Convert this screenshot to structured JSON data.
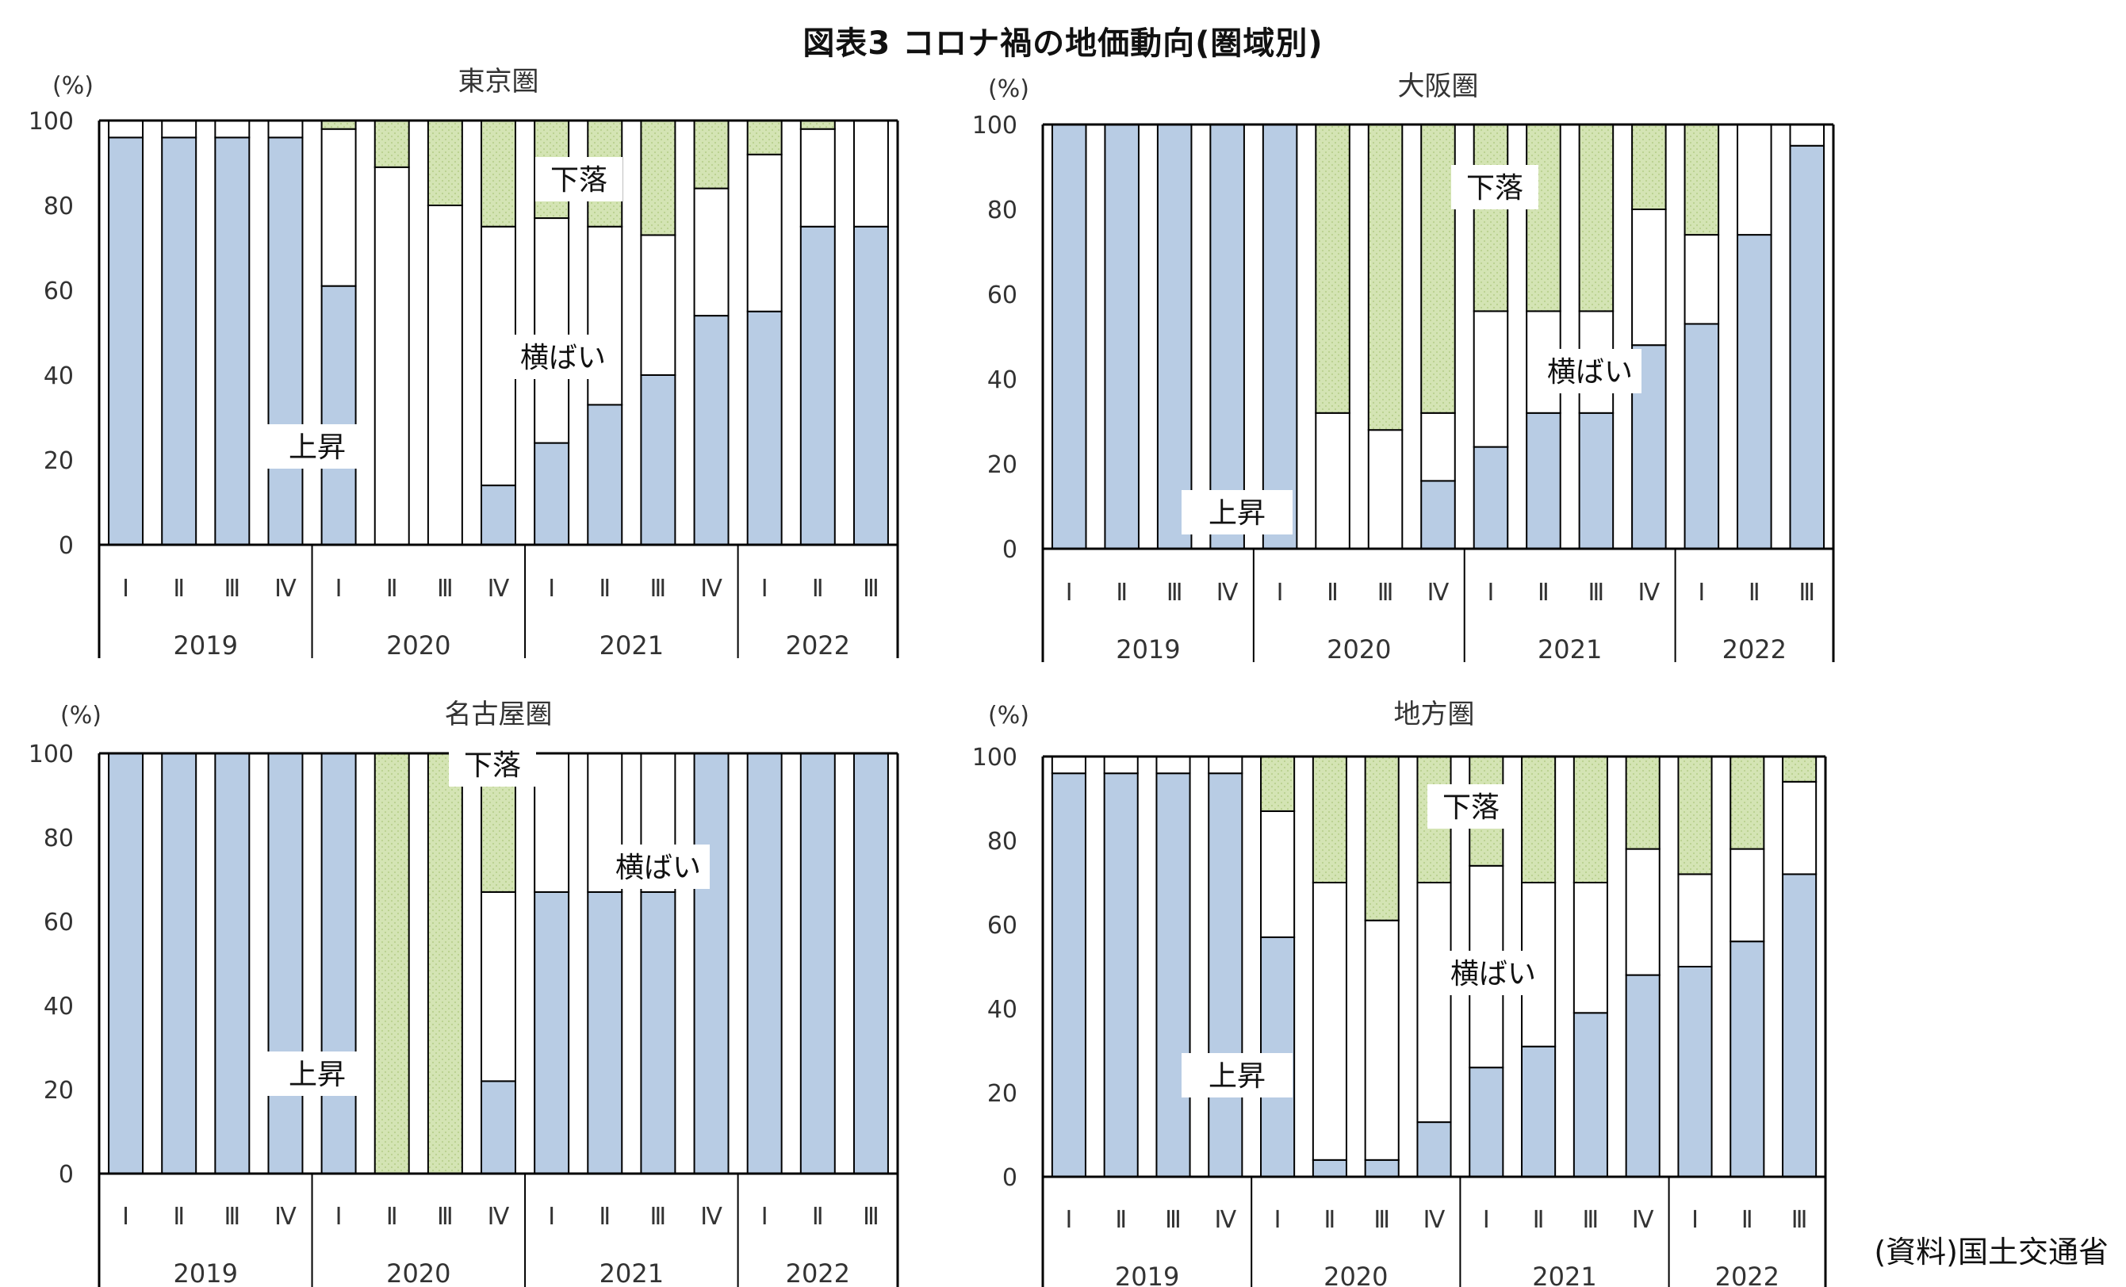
{
  "figure": {
    "title": "図表3 コロナ禍の地価動向(圏域別)",
    "source": "(資料)国土交通省"
  },
  "colors": {
    "rise": "#b8cce4",
    "flat": "#ffffff",
    "fall": "#d4e4b4",
    "fall_dot": "#b9d08e",
    "axis": "#000000"
  },
  "chart_data": [
    {
      "type": "bar",
      "stacked": true,
      "title": "東京圏",
      "ylabel": "(%)",
      "ylim": [
        0,
        100
      ],
      "yticks": [
        0,
        20,
        40,
        60,
        80,
        100
      ],
      "categories": [
        "Ⅰ",
        "Ⅱ",
        "Ⅲ",
        "Ⅳ",
        "Ⅰ",
        "Ⅱ",
        "Ⅲ",
        "Ⅳ",
        "Ⅰ",
        "Ⅱ",
        "Ⅲ",
        "Ⅳ",
        "Ⅰ",
        "Ⅱ",
        "Ⅲ"
      ],
      "years": [
        {
          "label": "2019",
          "count": 4
        },
        {
          "label": "2020",
          "count": 4
        },
        {
          "label": "2021",
          "count": 4
        },
        {
          "label": "2022",
          "count": 3
        }
      ],
      "series": [
        {
          "name": "上昇",
          "values": [
            96,
            96,
            96,
            96,
            61,
            0,
            0,
            14,
            24,
            33,
            40,
            54,
            55,
            75,
            75
          ]
        },
        {
          "name": "横ばい",
          "values": [
            4,
            4,
            4,
            4,
            37,
            89,
            80,
            61,
            53,
            42,
            33,
            30,
            37,
            23,
            25
          ]
        },
        {
          "name": "下落",
          "values": [
            0,
            0,
            0,
            0,
            2,
            11,
            20,
            25,
            23,
            25,
            27,
            16,
            8,
            2,
            0
          ]
        }
      ],
      "annotations": {
        "rise": "上昇",
        "flat": "横ばい",
        "fall": "下落"
      }
    },
    {
      "type": "bar",
      "stacked": true,
      "title": "大阪圏",
      "ylabel": "(%)",
      "ylim": [
        0,
        100
      ],
      "yticks": [
        0,
        20,
        40,
        60,
        80,
        100
      ],
      "categories": [
        "Ⅰ",
        "Ⅱ",
        "Ⅲ",
        "Ⅳ",
        "Ⅰ",
        "Ⅱ",
        "Ⅲ",
        "Ⅳ",
        "Ⅰ",
        "Ⅱ",
        "Ⅲ",
        "Ⅳ",
        "Ⅰ",
        "Ⅱ",
        "Ⅲ"
      ],
      "years": [
        {
          "label": "2019",
          "count": 4
        },
        {
          "label": "2020",
          "count": 4
        },
        {
          "label": "2021",
          "count": 4
        },
        {
          "label": "2022",
          "count": 3
        }
      ],
      "series": [
        {
          "name": "上昇",
          "values": [
            100,
            100,
            100,
            100,
            100,
            0,
            0,
            16,
            24,
            32,
            32,
            48,
            53,
            74,
            95
          ]
        },
        {
          "name": "横ばい",
          "values": [
            0,
            0,
            0,
            0,
            0,
            32,
            28,
            16,
            32,
            24,
            24,
            32,
            21,
            26,
            5
          ]
        },
        {
          "name": "下落",
          "values": [
            0,
            0,
            0,
            0,
            0,
            68,
            72,
            68,
            44,
            44,
            44,
            20,
            26,
            0,
            0
          ]
        }
      ],
      "annotations": {
        "rise": "上昇",
        "flat": "横ばい",
        "fall": "下落"
      }
    },
    {
      "type": "bar",
      "stacked": true,
      "title": "名古屋圏",
      "ylabel": "(%)",
      "ylim": [
        0,
        100
      ],
      "yticks": [
        0,
        20,
        40,
        60,
        80,
        100
      ],
      "categories": [
        "Ⅰ",
        "Ⅱ",
        "Ⅲ",
        "Ⅳ",
        "Ⅰ",
        "Ⅱ",
        "Ⅲ",
        "Ⅳ",
        "Ⅰ",
        "Ⅱ",
        "Ⅲ",
        "Ⅳ",
        "Ⅰ",
        "Ⅱ",
        "Ⅲ"
      ],
      "years": [
        {
          "label": "2019",
          "count": 4
        },
        {
          "label": "2020",
          "count": 4
        },
        {
          "label": "2021",
          "count": 4
        },
        {
          "label": "2022",
          "count": 3
        }
      ],
      "series": [
        {
          "name": "上昇",
          "values": [
            100,
            100,
            100,
            100,
            100,
            0,
            0,
            22,
            67,
            67,
            67,
            100,
            100,
            100,
            100
          ]
        },
        {
          "name": "横ばい",
          "values": [
            0,
            0,
            0,
            0,
            0,
            0,
            0,
            45,
            33,
            33,
            33,
            0,
            0,
            0,
            0
          ]
        },
        {
          "name": "下落",
          "values": [
            0,
            0,
            0,
            0,
            0,
            100,
            100,
            33,
            0,
            0,
            0,
            0,
            0,
            0,
            0
          ]
        }
      ],
      "annotations": {
        "rise": "上昇",
        "flat": "横ばい",
        "fall": "下落"
      }
    },
    {
      "type": "bar",
      "stacked": true,
      "title": "地方圏",
      "ylabel": "(%)",
      "ylim": [
        0,
        100
      ],
      "yticks": [
        0,
        20,
        40,
        60,
        80,
        100
      ],
      "categories": [
        "Ⅰ",
        "Ⅱ",
        "Ⅲ",
        "Ⅳ",
        "Ⅰ",
        "Ⅱ",
        "Ⅲ",
        "Ⅳ",
        "Ⅰ",
        "Ⅱ",
        "Ⅲ",
        "Ⅳ",
        "Ⅰ",
        "Ⅱ",
        "Ⅲ"
      ],
      "years": [
        {
          "label": "2019",
          "count": 4
        },
        {
          "label": "2020",
          "count": 4
        },
        {
          "label": "2021",
          "count": 4
        },
        {
          "label": "2022",
          "count": 3
        }
      ],
      "series": [
        {
          "name": "上昇",
          "values": [
            96,
            96,
            96,
            96,
            57,
            4,
            4,
            13,
            26,
            31,
            39,
            48,
            50,
            56,
            72
          ]
        },
        {
          "name": "横ばい",
          "values": [
            4,
            4,
            4,
            4,
            30,
            66,
            57,
            57,
            48,
            39,
            31,
            30,
            22,
            22,
            22
          ]
        },
        {
          "name": "下落",
          "values": [
            0,
            0,
            0,
            0,
            13,
            30,
            39,
            30,
            26,
            30,
            30,
            22,
            28,
            22,
            6
          ]
        }
      ],
      "annotations": {
        "rise": "上昇",
        "flat": "横ばい",
        "fall": "下落"
      }
    }
  ]
}
